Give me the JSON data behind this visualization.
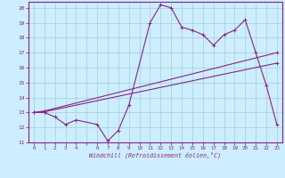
{
  "bg_color": "#cceeff",
  "line_color": "#882288",
  "grid_color": "#aacccc",
  "xlabel": "Windchill (Refroidissement éolien,°C)",
  "xlim": [
    -0.5,
    23.5
  ],
  "ylim": [
    11,
    20.4
  ],
  "yticks": [
    11,
    12,
    13,
    14,
    15,
    16,
    17,
    18,
    19,
    20
  ],
  "xticks": [
    0,
    1,
    2,
    3,
    4,
    5,
    6,
    7,
    8,
    9,
    10,
    11,
    12,
    13,
    14,
    15,
    16,
    17,
    18,
    19,
    20,
    21,
    22,
    23
  ],
  "line1_x": [
    0,
    1,
    2,
    3,
    4,
    6,
    7,
    8,
    9,
    11,
    12,
    13,
    14,
    15,
    16,
    17,
    18,
    19,
    20,
    21,
    22,
    23
  ],
  "line1_y": [
    13,
    13,
    12.7,
    12.2,
    12.5,
    12.2,
    11.1,
    11.8,
    13.5,
    19.0,
    20.2,
    20.0,
    18.7,
    18.5,
    18.2,
    17.5,
    18.2,
    18.5,
    19.2,
    17.0,
    14.8,
    12.2
  ],
  "line2_x": [
    0,
    1,
    23
  ],
  "line2_y": [
    13,
    13.1,
    17.0
  ],
  "line3_x": [
    0,
    1,
    23
  ],
  "line3_y": [
    13,
    13.05,
    16.3
  ],
  "xtick_labels": [
    "0",
    "1",
    "2",
    "3",
    "4",
    "",
    "6",
    "7",
    "8",
    "9",
    "10",
    "11",
    "12",
    "13",
    "14",
    "15",
    "16",
    "17",
    "18",
    "19",
    "20",
    "21",
    "22",
    "23"
  ]
}
